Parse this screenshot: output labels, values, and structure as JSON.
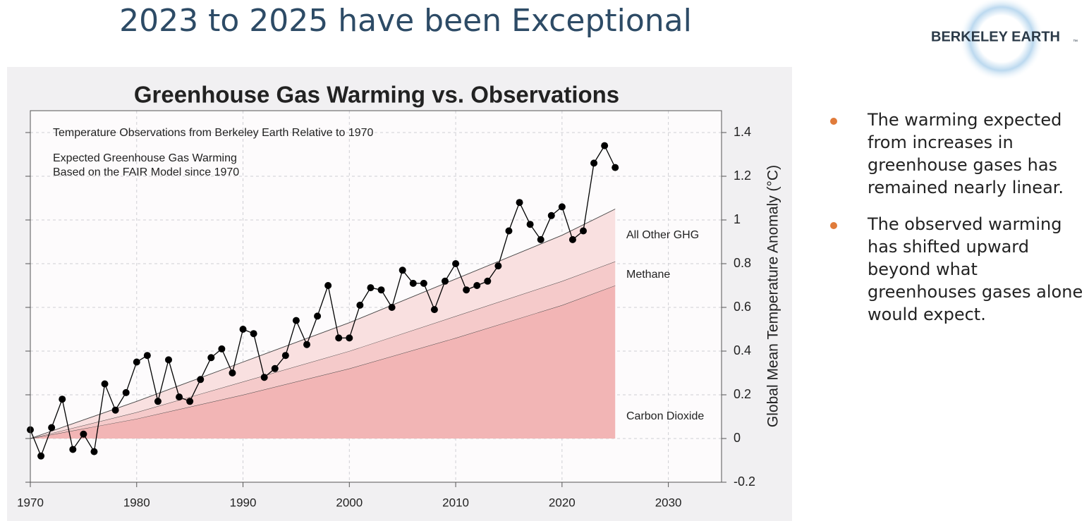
{
  "slide": {
    "title": "2023 to 2025 have been Exceptional",
    "logo": "BERKELEY EARTH",
    "logo_mark": "™",
    "bullets": [
      "The warming expected from increases in greenhouse gases has remained nearly linear.",
      "The observed warming has shifted upward beyond what greenhouses gases alone would expect."
    ]
  },
  "chart_data": {
    "type": "line",
    "title": "Greenhouse Gas Warming vs. Observations",
    "y_label": "Global Mean Temperature Anomaly (°C)",
    "annotations": [
      "Expected Greenhouse Gas Warming",
      "Based on the FAIR Model since 1970"
    ],
    "xlim": [
      1970,
      2035
    ],
    "ylim": [
      -0.2,
      1.5
    ],
    "xticks": [
      1970,
      1980,
      1990,
      2000,
      2010,
      2020,
      2030
    ],
    "yticks": [
      -0.2,
      0,
      0.2,
      0.4,
      0.6,
      0.8,
      1,
      1.2,
      1.4
    ],
    "grid": true,
    "series": [
      {
        "name": "Carbon Dioxide",
        "color": "#f2b5b5",
        "stacked": true,
        "x": [
          1970,
          1980,
          1990,
          2000,
          2010,
          2020,
          2025
        ],
        "values": [
          0,
          0.09,
          0.2,
          0.32,
          0.46,
          0.61,
          0.7
        ]
      },
      {
        "name": "Methane",
        "color": "#f5caca",
        "stacked": true,
        "x": [
          1970,
          1980,
          1990,
          2000,
          2010,
          2020,
          2025
        ],
        "values": [
          0,
          0.03,
          0.06,
          0.08,
          0.1,
          0.11,
          0.11
        ]
      },
      {
        "name": "All Other GHG",
        "color": "#f9e0e0",
        "stacked": true,
        "x": [
          1970,
          1980,
          1990,
          2000,
          2010,
          2020,
          2025
        ],
        "values": [
          0,
          0.05,
          0.09,
          0.13,
          0.17,
          0.21,
          0.24
        ]
      },
      {
        "name": "Temperature Observations from Berkeley Earth Relative to 1970",
        "color": "#000000",
        "markers": true,
        "x": [
          1970,
          1971,
          1972,
          1973,
          1974,
          1975,
          1976,
          1977,
          1978,
          1979,
          1980,
          1981,
          1982,
          1983,
          1984,
          1985,
          1986,
          1987,
          1988,
          1989,
          1990,
          1991,
          1992,
          1993,
          1994,
          1995,
          1996,
          1997,
          1998,
          1999,
          2000,
          2001,
          2002,
          2003,
          2004,
          2005,
          2006,
          2007,
          2008,
          2009,
          2010,
          2011,
          2012,
          2013,
          2014,
          2015,
          2016,
          2017,
          2018,
          2019,
          2020,
          2021,
          2022,
          2023,
          2024,
          2025
        ],
        "values": [
          0.04,
          -0.08,
          0.05,
          0.18,
          -0.05,
          0.02,
          -0.06,
          0.25,
          0.13,
          0.21,
          0.35,
          0.38,
          0.17,
          0.36,
          0.19,
          0.17,
          0.27,
          0.37,
          0.41,
          0.3,
          0.5,
          0.48,
          0.28,
          0.32,
          0.38,
          0.54,
          0.43,
          0.56,
          0.7,
          0.46,
          0.46,
          0.61,
          0.69,
          0.68,
          0.6,
          0.77,
          0.71,
          0.71,
          0.59,
          0.72,
          0.8,
          0.68,
          0.7,
          0.72,
          0.79,
          0.95,
          1.08,
          0.98,
          0.91,
          1.02,
          1.06,
          0.91,
          0.95,
          1.26,
          1.34,
          1.24
        ]
      }
    ]
  }
}
